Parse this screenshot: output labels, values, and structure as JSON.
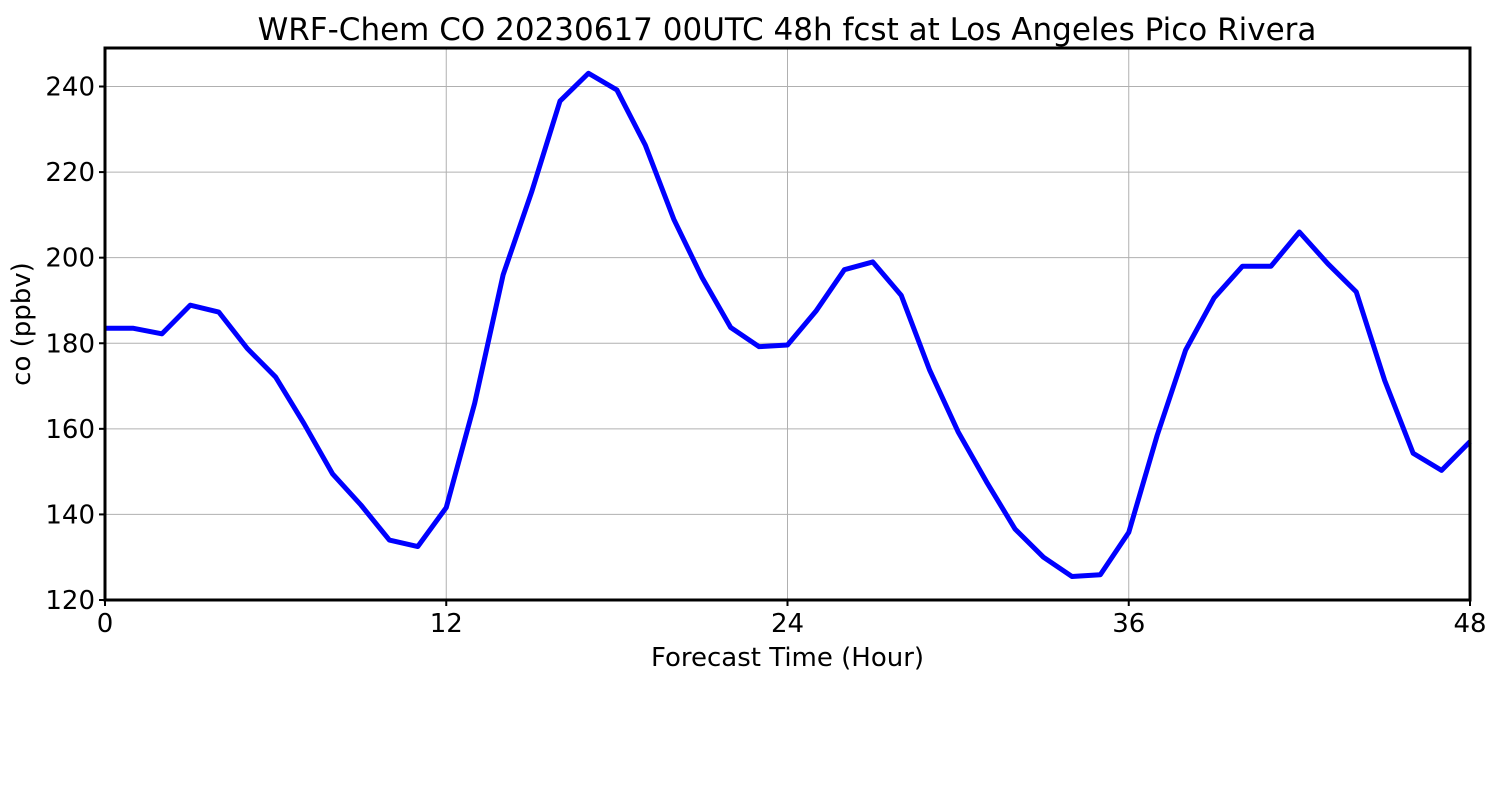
{
  "chart_data": {
    "type": "line",
    "title": "WRF-Chem CO  20230617 00UTC 48h fcst at Los Angeles Pico Rivera",
    "xlabel": "Forecast Time (Hour)",
    "ylabel": "co  (ppbv)",
    "xlim": [
      0,
      48
    ],
    "ylim": [
      120,
      249
    ],
    "x_ticks": [
      0,
      12,
      24,
      36,
      48
    ],
    "y_ticks": [
      120,
      140,
      160,
      180,
      200,
      220,
      240
    ],
    "grid": true,
    "series": [
      {
        "color": "#0000ff",
        "x": [
          0,
          1,
          2,
          3,
          4,
          5,
          6,
          7,
          8,
          9,
          10,
          11,
          12,
          13,
          14,
          15,
          16,
          17,
          18,
          19,
          20,
          21,
          22,
          23,
          24,
          25,
          26,
          27,
          28,
          29,
          30,
          31,
          32,
          33,
          34,
          35,
          36,
          37,
          38,
          39,
          40,
          41,
          42,
          43,
          44,
          45,
          46,
          47,
          48
        ],
        "values": [
          183.5,
          183.5,
          182.2,
          188.9,
          187.3,
          178.8,
          172.1,
          161.2,
          149.5,
          142.2,
          134.0,
          132.5,
          141.6,
          166.0,
          196.0,
          215.3,
          236.6,
          243.1,
          239.2,
          226.3,
          209.0,
          195.3,
          183.7,
          179.2,
          179.6,
          187.5,
          197.2,
          199.0,
          191.2,
          173.7,
          159.3,
          147.6,
          136.6,
          130.0,
          125.5,
          125.9,
          135.8,
          158.5,
          178.4,
          190.6,
          198.0,
          198.0,
          206.0,
          198.6,
          192.0,
          171.3,
          154.3,
          150.3,
          157.0
        ]
      }
    ]
  }
}
